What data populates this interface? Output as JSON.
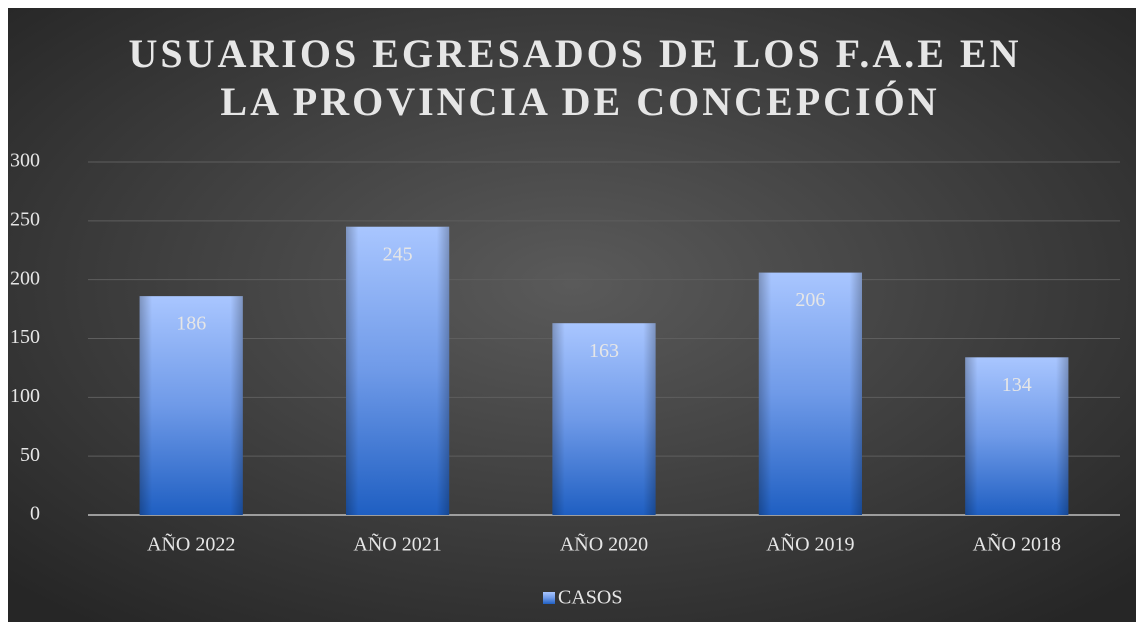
{
  "chart_data": {
    "type": "bar",
    "title": [
      "USUARIOS EGRESADOS DE LOS F.A.E EN",
      "LA PROVINCIA DE CONCEPCIÓN"
    ],
    "categories": [
      "AÑO 2022",
      "AÑO 2021",
      "AÑO 2020",
      "AÑO 2019",
      "AÑO 2018"
    ],
    "series": [
      {
        "name": "CASOS",
        "color": "#4f81d6",
        "values": [
          186,
          245,
          163,
          206,
          134
        ]
      }
    ],
    "ylim": [
      0,
      300
    ],
    "yticks": [
      0,
      50,
      100,
      150,
      200,
      250,
      300
    ],
    "grid": true,
    "legend": "bottom"
  }
}
